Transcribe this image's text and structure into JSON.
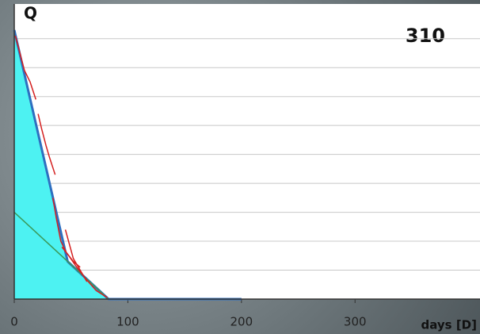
{
  "chart_data": {
    "type": "line",
    "title": "310",
    "y_label": "Q",
    "x_label": "days [D]",
    "xlim": [
      0,
      410
    ],
    "xticks": [
      0,
      100,
      200,
      300
    ],
    "ylim": [
      0,
      10.2
    ],
    "yticks": [
      1,
      2,
      3,
      4,
      5,
      6,
      7,
      8,
      9
    ],
    "ytick_labels": false,
    "grid": true,
    "series": [
      {
        "color": "#2e6fc0",
        "fill": "#4df2f2",
        "x": [
          0,
          47,
          83,
          200
        ],
        "values": [
          9.3,
          1.3,
          0,
          0
        ]
      },
      {
        "color": "#3a9a5a",
        "x": [
          0,
          83
        ],
        "values": [
          3.0,
          0
        ]
      },
      {
        "color": "#d42020",
        "x": [
          1,
          5,
          9,
          14,
          19
        ],
        "values": [
          9.1,
          8.5,
          7.9,
          7.5,
          6.9
        ]
      },
      {
        "color": "#d42020",
        "x": [
          21,
          24,
          28,
          31,
          36
        ],
        "values": [
          6.4,
          5.9,
          5.3,
          4.9,
          4.3
        ]
      },
      {
        "color": "#d42020",
        "x": [
          34,
          37,
          41,
          46,
          52,
          58
        ],
        "values": [
          3.5,
          2.8,
          2.0,
          1.6,
          1.3,
          1.1
        ]
      },
      {
        "color": "#d42020",
        "x": [
          42,
          48,
          55,
          63,
          72,
          82
        ],
        "values": [
          1.8,
          1.5,
          1.1,
          0.7,
          0.3,
          0.05
        ]
      },
      {
        "color": "#d42020",
        "x": [
          45,
          52,
          58,
          64
        ],
        "values": [
          2.4,
          1.4,
          1.0,
          0.6
        ]
      }
    ]
  }
}
